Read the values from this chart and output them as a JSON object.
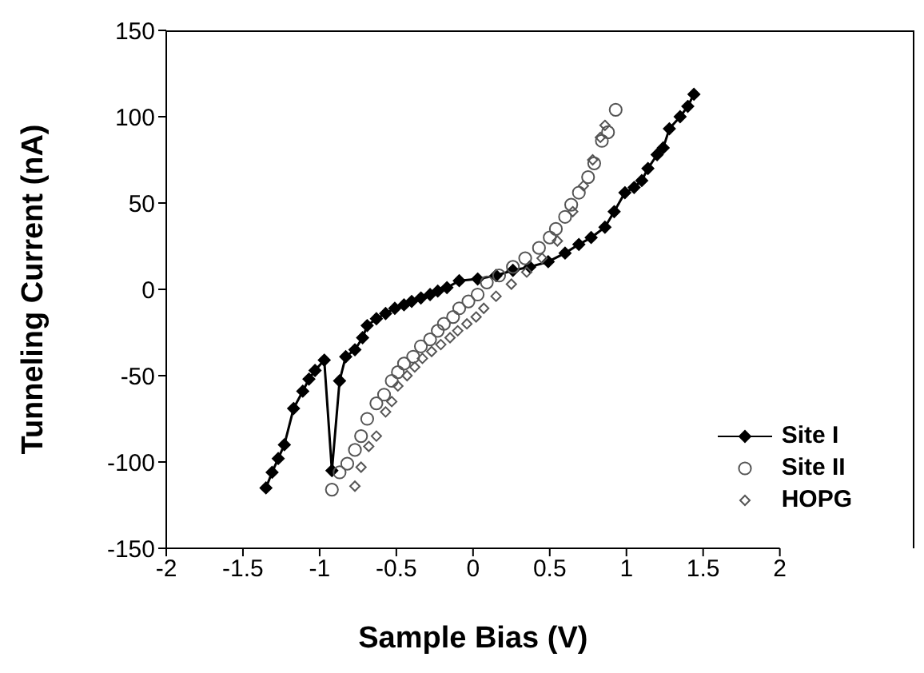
{
  "chart_data": {
    "type": "scatter",
    "xlabel": "Sample Bias (V)",
    "ylabel": "Tunneling Current (nA)",
    "xlim": [
      -2,
      2
    ],
    "ylim": [
      -150,
      150
    ],
    "xticks": [
      -2,
      -1.5,
      -1,
      -0.5,
      0,
      0.5,
      1,
      1.5,
      2
    ],
    "yticks": [
      -150,
      -100,
      -50,
      0,
      50,
      100,
      150
    ],
    "grid": false,
    "legend": "right",
    "series": [
      {
        "name": "Site I",
        "type": "line",
        "marker": "diamond",
        "color": "#000000",
        "x": [
          -1.35,
          -1.31,
          -1.27,
          -1.23,
          -1.17,
          -1.11,
          -1.07,
          -1.03,
          -0.97,
          -0.92,
          -0.87,
          -0.83,
          -0.77,
          -0.72,
          -0.69,
          -0.63,
          -0.57,
          -0.51,
          -0.45,
          -0.4,
          -0.34,
          -0.28,
          -0.23,
          -0.17,
          -0.09,
          0.03,
          0.15,
          0.26,
          0.37,
          0.49,
          0.6,
          0.69,
          0.77,
          0.86,
          0.92,
          0.99,
          1.05,
          1.1,
          1.14,
          1.2,
          1.24,
          1.28,
          1.35,
          1.4,
          1.44
        ],
        "values": [
          -115,
          -106,
          -98,
          -90,
          -69,
          -59,
          -52,
          -47,
          -41,
          -105,
          -53,
          -39,
          -35,
          -28,
          -21,
          -17,
          -14,
          -11,
          -9,
          -7,
          -5,
          -3,
          -1,
          1,
          5,
          6,
          8,
          11,
          13,
          16,
          21,
          26,
          30,
          36,
          45,
          56,
          59,
          63,
          70,
          78,
          82,
          93,
          100,
          106,
          113
        ]
      },
      {
        "name": "Site II",
        "marker": "circle",
        "color": "#555555",
        "x": [
          -0.92,
          -0.87,
          -0.82,
          -0.77,
          -0.73,
          -0.69,
          -0.63,
          -0.58,
          -0.53,
          -0.49,
          -0.45,
          -0.39,
          -0.34,
          -0.28,
          -0.23,
          -0.19,
          -0.13,
          -0.09,
          -0.03,
          0.03,
          0.09,
          0.17,
          0.26,
          0.34,
          0.43,
          0.5,
          0.54,
          0.6,
          0.64,
          0.69,
          0.75,
          0.79,
          0.84,
          0.88,
          0.93
        ],
        "values": [
          -116,
          -106,
          -101,
          -93,
          -85,
          -75,
          -66,
          -61,
          -53,
          -48,
          -43,
          -39,
          -33,
          -29,
          -24,
          -20,
          -16,
          -11,
          -7,
          -3,
          4,
          8,
          13,
          18,
          24,
          30,
          35,
          42,
          49,
          56,
          65,
          73,
          86,
          91,
          104
        ]
      },
      {
        "name": "HOPG",
        "marker": "diamond",
        "color": "#555555",
        "x": [
          -0.77,
          -0.73,
          -0.68,
          -0.63,
          -0.57,
          -0.53,
          -0.49,
          -0.43,
          -0.38,
          -0.33,
          -0.27,
          -0.21,
          -0.15,
          -0.1,
          -0.04,
          0.02,
          0.07,
          0.15,
          0.25,
          0.35,
          0.45,
          0.55,
          0.65,
          0.72,
          0.78,
          0.83,
          0.86
        ],
        "values": [
          -114,
          -103,
          -91,
          -85,
          -71,
          -65,
          -56,
          -50,
          -45,
          -40,
          -36,
          -32,
          -28,
          -24,
          -20,
          -16,
          -11,
          -4,
          3,
          10,
          18,
          28,
          45,
          60,
          75,
          88,
          95
        ]
      }
    ]
  }
}
